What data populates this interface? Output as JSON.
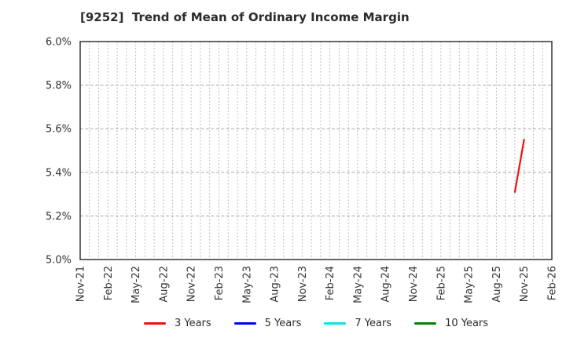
{
  "chart_data": {
    "type": "line",
    "title": "[9252]  Trend of Mean of Ordinary Income Margin",
    "xlabel": "",
    "ylabel": "",
    "ylim": [
      5.0,
      6.0
    ],
    "yticks": [
      {
        "value": 5.0,
        "label": "5.0%"
      },
      {
        "value": 5.2,
        "label": "5.2%"
      },
      {
        "value": 5.4,
        "label": "5.4%"
      },
      {
        "value": 5.6,
        "label": "5.6%"
      },
      {
        "value": 5.8,
        "label": "5.8%"
      },
      {
        "value": 6.0,
        "label": "6.0%"
      }
    ],
    "x_start": "Nov-21",
    "x_end": "Feb-26",
    "xticks": [
      "Nov-21",
      "Feb-22",
      "May-22",
      "Aug-22",
      "Nov-22",
      "Feb-23",
      "May-23",
      "Aug-23",
      "Nov-23",
      "Feb-24",
      "May-24",
      "Aug-24",
      "Nov-24",
      "Feb-25",
      "May-25",
      "Aug-25",
      "Nov-25",
      "Feb-26"
    ],
    "grid": {
      "vertical": "monthly-dotted",
      "horizontal": "dashed"
    },
    "legend_position": "bottom",
    "series": [
      {
        "name": "3 Years",
        "color": "#ee1111",
        "points": [
          [
            "Oct-25",
            5.31
          ],
          [
            "Nov-25",
            5.55
          ]
        ]
      },
      {
        "name": "5 Years",
        "color": "#0000ee",
        "points": []
      },
      {
        "name": "7 Years",
        "color": "#00e5e5",
        "points": []
      },
      {
        "name": "10 Years",
        "color": "#008000",
        "points": []
      }
    ]
  }
}
